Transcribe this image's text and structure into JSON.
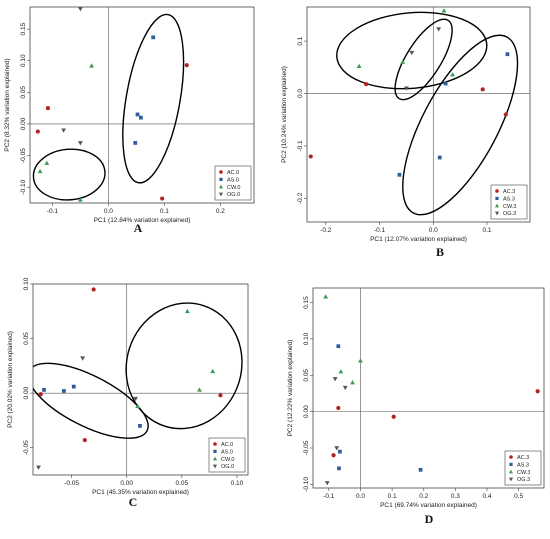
{
  "chart_data": [
    {
      "type": "scatter",
      "panel_label": "A",
      "xlabel": "PC1 (12.84% variation explained)",
      "ylabel": "PC2 (8.32% variation explained)",
      "xlim": [
        -0.14,
        0.26
      ],
      "ylim": [
        -0.125,
        0.185
      ],
      "xticks": [
        {
          "v": -0.1,
          "t": "-0.1"
        },
        {
          "v": 0.0,
          "t": "0.0"
        },
        {
          "v": 0.1,
          "t": "0.1"
        },
        {
          "v": 0.2,
          "t": "0.2"
        }
      ],
      "yticks": [
        {
          "v": -0.1,
          "t": "-0.10"
        },
        {
          "v": -0.05,
          "t": "-0.05"
        },
        {
          "v": 0.0,
          "t": "0.00"
        },
        {
          "v": 0.05,
          "t": "0.05"
        },
        {
          "v": 0.1,
          "t": "0.10"
        },
        {
          "v": 0.15,
          "t": "0.15"
        }
      ],
      "legend": {
        "position": "bottom-right",
        "entries": [
          "AC.0",
          "AS.0",
          "CW.0",
          "OG.0"
        ]
      },
      "series": [
        {
          "name": "AC.0",
          "points": [
            [
              -0.126,
              -0.012
            ],
            [
              -0.108,
              0.025
            ],
            [
              0.14,
              0.093
            ],
            [
              0.096,
              -0.118
            ]
          ]
        },
        {
          "name": "AS.0",
          "points": [
            [
              0.08,
              0.137
            ],
            [
              0.052,
              0.015
            ],
            [
              0.058,
              0.01
            ],
            [
              0.048,
              -0.03
            ]
          ]
        },
        {
          "name": "CW.0",
          "points": [
            [
              -0.122,
              -0.075
            ],
            [
              -0.11,
              -0.062
            ],
            [
              -0.05,
              -0.12
            ],
            [
              -0.03,
              0.092
            ]
          ]
        },
        {
          "name": "OG.0",
          "points": [
            [
              -0.05,
              0.182
            ],
            [
              -0.08,
              -0.01
            ],
            [
              -0.05,
              -0.03
            ]
          ]
        }
      ],
      "ellipses": [
        {
          "cx": 0.08,
          "cy": 0.04,
          "rx": 0.048,
          "ry": 0.135,
          "rotate": 10
        },
        {
          "cx": -0.07,
          "cy": -0.08,
          "rx": 0.064,
          "ry": 0.04,
          "rotate": -5
        }
      ]
    },
    {
      "type": "scatter",
      "panel_label": "B",
      "xlabel": "PC1 (12.07% variation explained)",
      "ylabel": "PC2 (10.24% variation explained)",
      "xlim": [
        -0.235,
        0.18
      ],
      "ylim": [
        -0.245,
        0.165
      ],
      "xticks": [
        {
          "v": -0.2,
          "t": "-0.2"
        },
        {
          "v": -0.1,
          "t": "-0.1"
        },
        {
          "v": 0.0,
          "t": "0.0"
        },
        {
          "v": 0.1,
          "t": "0.1"
        }
      ],
      "yticks": [
        {
          "v": -0.2,
          "t": "-0.2"
        },
        {
          "v": -0.1,
          "t": "-0.1"
        },
        {
          "v": 0.0,
          "t": "0.0"
        },
        {
          "v": 0.1,
          "t": "0.1"
        }
      ],
      "legend": {
        "position": "bottom-right",
        "entries": [
          "AC.3",
          "AS.3",
          "CW.3",
          "OG.3"
        ]
      },
      "series": [
        {
          "name": "AC.3",
          "points": [
            [
              -0.228,
              -0.12
            ],
            [
              -0.125,
              0.018
            ],
            [
              0.092,
              0.008
            ],
            [
              0.135,
              -0.04
            ]
          ]
        },
        {
          "name": "AS.3",
          "points": [
            [
              0.138,
              0.075
            ],
            [
              0.012,
              -0.122
            ],
            [
              -0.063,
              -0.155
            ],
            [
              0.023,
              0.019
            ]
          ]
        },
        {
          "name": "CW.3",
          "points": [
            [
              -0.138,
              0.052
            ],
            [
              -0.057,
              0.06
            ],
            [
              0.02,
              0.158
            ],
            [
              0.036,
              0.036
            ]
          ]
        },
        {
          "name": "OG.3",
          "points": [
            [
              -0.04,
              0.078
            ],
            [
              0.01,
              0.123
            ],
            [
              -0.05,
              0.01
            ]
          ]
        }
      ],
      "ellipses": [
        {
          "cx": -0.04,
          "cy": 0.082,
          "rx": 0.14,
          "ry": 0.072,
          "rotate": -5
        },
        {
          "cx": -0.018,
          "cy": 0.065,
          "rx": 0.032,
          "ry": 0.088,
          "rotate": 32
        },
        {
          "cx": 0.05,
          "cy": -0.06,
          "rx": 0.07,
          "ry": 0.19,
          "rotate": 28
        }
      ]
    },
    {
      "type": "scatter",
      "panel_label": "C",
      "xlabel": "PC1 (45.35% variation explained)",
      "ylabel": "PC2 (20.02% variation explained)",
      "xlim": [
        -0.085,
        0.11
      ],
      "ylim": [
        -0.075,
        0.1
      ],
      "xticks": [
        {
          "v": -0.05,
          "t": "-0.05"
        },
        {
          "v": 0.0,
          "t": "0.00"
        },
        {
          "v": 0.05,
          "t": "0.05"
        },
        {
          "v": 0.1,
          "t": "0.10"
        }
      ],
      "yticks": [
        {
          "v": -0.05,
          "t": "-0.05"
        },
        {
          "v": 0.0,
          "t": "0.00"
        },
        {
          "v": 0.05,
          "t": "0.05"
        },
        {
          "v": 0.1,
          "t": "0.10"
        }
      ],
      "legend": {
        "position": "bottom-right",
        "entries": [
          "AC.0",
          "AS.0",
          "CW.0",
          "OG.0"
        ]
      },
      "series": [
        {
          "name": "AC.0",
          "points": [
            [
              -0.03,
              0.095
            ],
            [
              -0.078,
              -0.001
            ],
            [
              -0.038,
              -0.043
            ],
            [
              0.085,
              -0.002
            ]
          ]
        },
        {
          "name": "AS.0",
          "points": [
            [
              -0.075,
              0.003
            ],
            [
              -0.048,
              0.006
            ],
            [
              0.012,
              -0.03
            ],
            [
              -0.057,
              0.002
            ]
          ]
        },
        {
          "name": "CW.0",
          "points": [
            [
              0.055,
              0.075
            ],
            [
              0.078,
              0.02
            ],
            [
              0.066,
              0.003
            ],
            [
              0.01,
              -0.012
            ]
          ]
        },
        {
          "name": "OG.0",
          "points": [
            [
              -0.08,
              -0.068
            ],
            [
              -0.04,
              0.032
            ],
            [
              0.008,
              -0.005
            ]
          ]
        }
      ],
      "ellipses": [
        {
          "cx": -0.035,
          "cy": -0.007,
          "rx": 0.06,
          "ry": 0.023,
          "rotate": 27
        },
        {
          "cx": 0.052,
          "cy": 0.025,
          "rx": 0.052,
          "ry": 0.058,
          "rotate": 18
        }
      ]
    },
    {
      "type": "scatter",
      "panel_label": "D",
      "xlabel": "PC1 (69.74% variation explained)",
      "ylabel": "PC2 (12.22% variation explained)",
      "xlim": [
        -0.15,
        0.58
      ],
      "ylim": [
        -0.105,
        0.17
      ],
      "xticks": [
        {
          "v": -0.1,
          "t": "-0.1"
        },
        {
          "v": 0.0,
          "t": "0.0"
        },
        {
          "v": 0.1,
          "t": "0.1"
        },
        {
          "v": 0.2,
          "t": "0.2"
        },
        {
          "v": 0.3,
          "t": "0.3"
        },
        {
          "v": 0.4,
          "t": "0.4"
        },
        {
          "v": 0.5,
          "t": "0.5"
        }
      ],
      "yticks": [
        {
          "v": -0.1,
          "t": "-0.10"
        },
        {
          "v": -0.05,
          "t": "-0.05"
        },
        {
          "v": 0.0,
          "t": "0.00"
        },
        {
          "v": 0.05,
          "t": "0.05"
        },
        {
          "v": 0.1,
          "t": "0.10"
        },
        {
          "v": 0.15,
          "t": "0.15"
        }
      ],
      "legend": {
        "position": "bottom-right",
        "entries": [
          "AC.3",
          "AS.3",
          "CW.3",
          "OG.3"
        ]
      },
      "series": [
        {
          "name": "AC.3",
          "points": [
            [
              0.56,
              0.028
            ],
            [
              0.105,
              -0.007
            ],
            [
              -0.07,
              0.005
            ],
            [
              -0.085,
              -0.06
            ]
          ]
        },
        {
          "name": "AS.3",
          "points": [
            [
              -0.07,
              0.09
            ],
            [
              -0.065,
              -0.055
            ],
            [
              -0.068,
              -0.078
            ],
            [
              0.19,
              -0.08
            ]
          ]
        },
        {
          "name": "CW.3",
          "points": [
            [
              -0.11,
              0.158
            ],
            [
              0.0,
              0.07
            ],
            [
              -0.025,
              0.04
            ],
            [
              -0.062,
              0.055
            ]
          ]
        },
        {
          "name": "OG.3",
          "points": [
            [
              -0.08,
              0.045
            ],
            [
              -0.048,
              0.033
            ],
            [
              -0.075,
              -0.05
            ],
            [
              -0.105,
              -0.098
            ]
          ]
        }
      ],
      "ellipses": []
    }
  ]
}
